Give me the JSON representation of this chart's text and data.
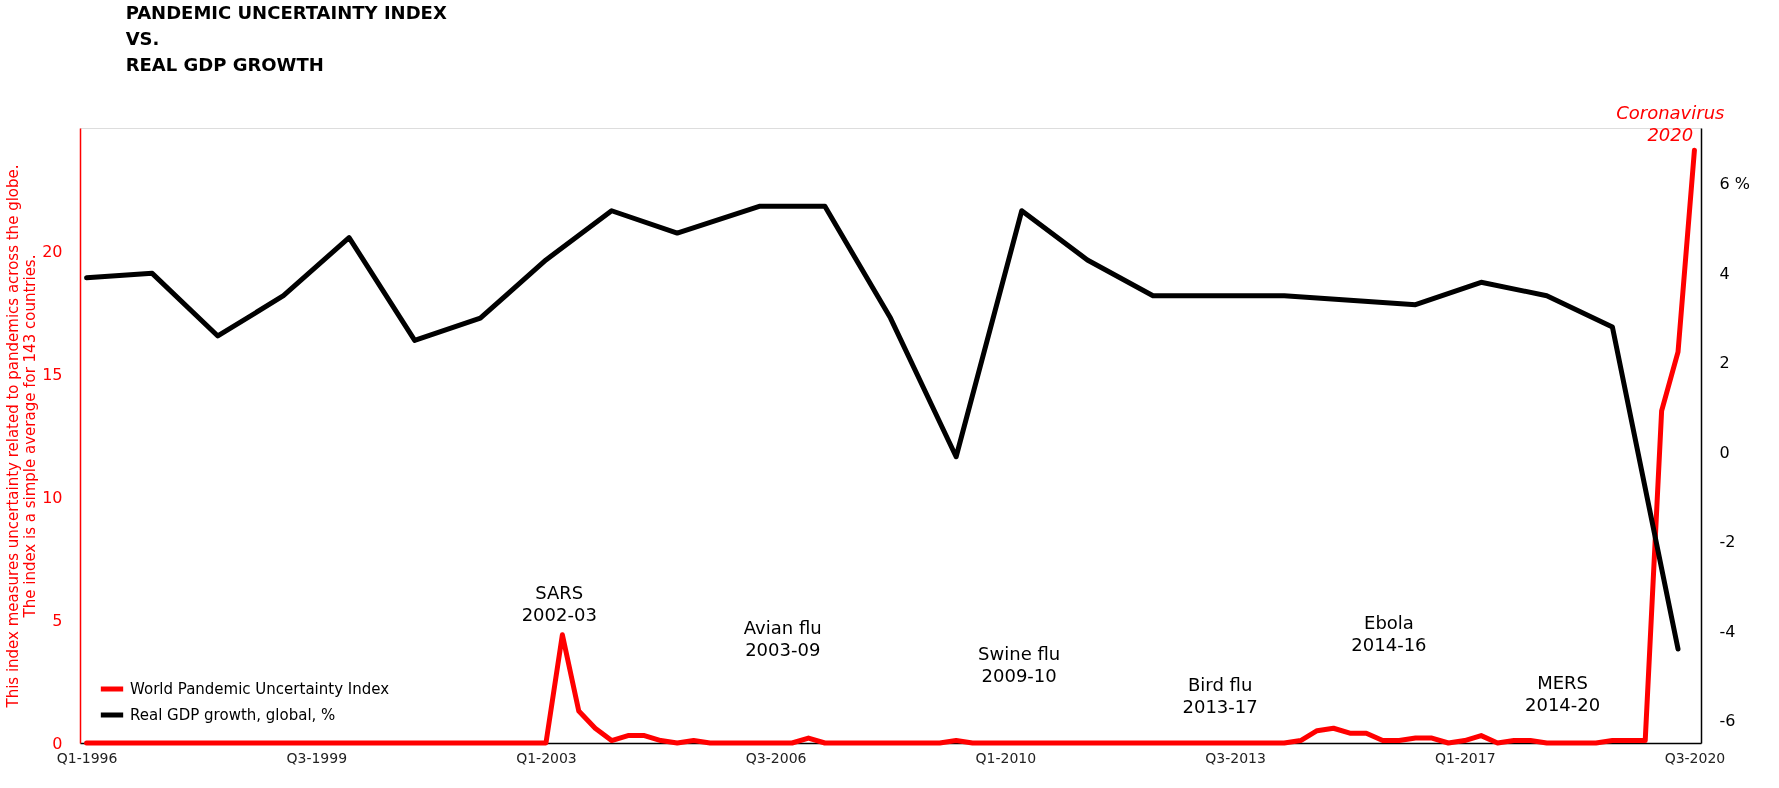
{
  "chart_data": {
    "type": "line",
    "title": "PANDEMIC UNCERTAINTY INDEX\nVS.\nREAL GDP GROWTH",
    "ylabel": "This index measures uncertainty related to pandemics across the globe.\nThe index is a simple average for 143 countries.",
    "categories": [
      "Q1-1996",
      null,
      null,
      null,
      null,
      null,
      null,
      null,
      null,
      null,
      null,
      null,
      null,
      null,
      "Q3-1999",
      null,
      null,
      null,
      null,
      null,
      null,
      null,
      null,
      null,
      null,
      null,
      null,
      null,
      "Q1-2003",
      null,
      null,
      null,
      null,
      null,
      null,
      null,
      null,
      null,
      null,
      null,
      null,
      null,
      "Q3-2006",
      null,
      null,
      null,
      null,
      null,
      null,
      null,
      null,
      null,
      null,
      null,
      null,
      null,
      "Q1-2010",
      null,
      null,
      null,
      null,
      null,
      null,
      null,
      null,
      null,
      null,
      null,
      null,
      null,
      "Q3-2013",
      null,
      null,
      null,
      null,
      null,
      null,
      null,
      null,
      null,
      null,
      null,
      null,
      null,
      "Q1-2017",
      null,
      null,
      null,
      null,
      null,
      null,
      null,
      null,
      null,
      null,
      null,
      null,
      null,
      "Q3-2020"
    ],
    "series": [
      {
        "name": "World Pandemic Uncertainty Index",
        "color": "#ff0000",
        "axis": "y",
        "values": [
          0,
          0,
          0,
          0,
          0,
          0,
          0,
          0,
          0,
          0,
          0,
          0,
          0,
          0,
          0,
          0,
          0,
          0,
          0,
          0,
          0,
          0,
          0,
          0,
          0,
          0,
          0,
          0,
          0,
          4.4,
          1.3,
          0.6,
          0.1,
          0.3,
          0.3,
          0.1,
          0,
          0.1,
          0,
          0,
          0,
          0,
          0,
          0,
          0.2,
          0,
          0,
          0,
          0,
          0,
          0,
          0,
          0,
          0.1,
          0,
          0,
          0,
          0,
          0,
          0,
          0,
          0,
          0,
          0,
          0,
          0,
          0,
          0,
          0,
          0,
          0,
          0,
          0,
          0,
          0.1,
          0.5,
          0.6,
          0.4,
          0.4,
          0.1,
          0.1,
          0.2,
          0.2,
          0,
          0.1,
          0.3,
          0,
          0.1,
          0.1,
          0,
          0,
          0,
          0,
          0.1,
          0.1,
          0.1,
          13.5,
          15.9,
          24.1
        ]
      },
      {
        "name": "Real GDP growth, global, %",
        "color": "#000000",
        "axis": "y2",
        "values": [
          3.9,
          null,
          null,
          null,
          4.0,
          null,
          null,
          null,
          2.6,
          null,
          null,
          null,
          3.5,
          null,
          null,
          null,
          4.8,
          null,
          null,
          null,
          2.5,
          null,
          null,
          null,
          3.0,
          null,
          null,
          null,
          4.3,
          null,
          null,
          null,
          5.4,
          null,
          null,
          null,
          4.9,
          null,
          null,
          null,
          null,
          5.5,
          null,
          null,
          null,
          5.5,
          null,
          null,
          null,
          3.0,
          null,
          null,
          null,
          -0.1,
          null,
          null,
          null,
          5.4,
          null,
          null,
          null,
          4.3,
          null,
          null,
          null,
          3.5,
          null,
          null,
          null,
          3.5,
          null,
          null,
          null,
          3.5,
          null,
          null,
          null,
          3.4,
          null,
          null,
          null,
          3.3,
          null,
          null,
          null,
          3.8,
          null,
          null,
          null,
          3.5,
          null,
          null,
          null,
          2.8,
          null,
          null,
          null,
          -4.4,
          null
        ]
      }
    ],
    "ylim": [
      0,
      25
    ],
    "yticks": [
      0,
      5,
      10,
      15,
      20
    ],
    "y2lim": [
      -6.5,
      7.25
    ],
    "y2ticks": [
      -6,
      -4,
      -2,
      0,
      2,
      4,
      {
        "value": 6,
        "label": "6  %"
      }
    ],
    "annotations": [
      "SARS\n2002-03",
      "Avian flu\n2003-09",
      "Swine flu\n2009-10",
      "Bird flu\n2013-17",
      "Ebola\n2014-16",
      "MERS\n2014-20",
      "Coronavirus\n2020"
    ],
    "grid": false,
    "legend": "bottom left",
    "line_style": "solid"
  }
}
